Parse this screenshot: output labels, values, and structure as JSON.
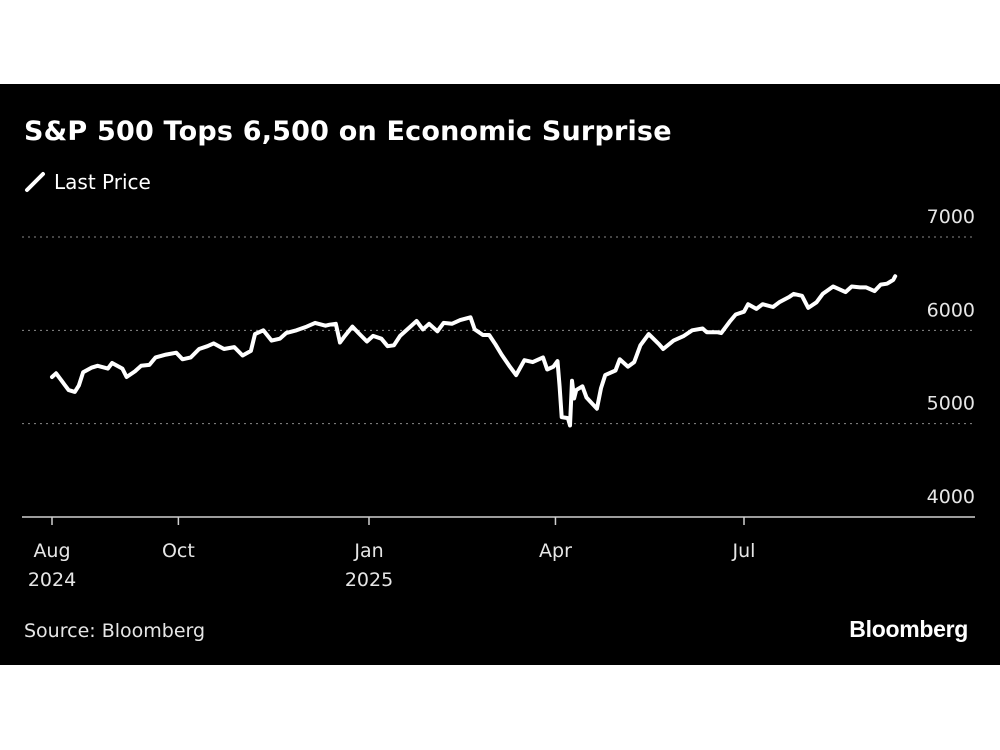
{
  "chart_data": {
    "type": "line",
    "title": "S&P 500 Tops 6,500 on Economic Surprise",
    "legend": {
      "placement": "top-left",
      "entries": [
        "Last Price"
      ]
    },
    "source": "Source: Bloomberg",
    "brand": "Bloomberg",
    "ylim": [
      4000,
      7000
    ],
    "yticks": [
      {
        "value": 7000,
        "label": "7000"
      },
      {
        "value": 6000,
        "label": "6000"
      },
      {
        "value": 5000,
        "label": "5000"
      },
      {
        "value": 4000,
        "label": "4000"
      }
    ],
    "grid": "horizontal-dotted",
    "x_range": [
      "2024-07-31",
      "2025-09-30"
    ],
    "xticks": [
      {
        "date": "2024-08-01",
        "line1": "Aug",
        "line2": "2024"
      },
      {
        "date": "2024-10-01",
        "line1": "Oct",
        "line2": ""
      },
      {
        "date": "2025-01-01",
        "line1": "Jan",
        "line2": "2025"
      },
      {
        "date": "2025-04-01",
        "line1": "Apr",
        "line2": ""
      },
      {
        "date": "2025-07-01",
        "line1": "Jul",
        "line2": ""
      }
    ],
    "series": [
      {
        "name": "Last Price",
        "color": "#ffffff",
        "points": [
          [
            "2024-08-01",
            5500
          ],
          [
            "2024-08-03",
            5540
          ],
          [
            "2024-08-05",
            5480
          ],
          [
            "2024-08-07",
            5420
          ],
          [
            "2024-08-09",
            5360
          ],
          [
            "2024-08-12",
            5340
          ],
          [
            "2024-08-14",
            5410
          ],
          [
            "2024-08-16",
            5550
          ],
          [
            "2024-08-20",
            5600
          ],
          [
            "2024-08-23",
            5620
          ],
          [
            "2024-08-28",
            5590
          ],
          [
            "2024-08-30",
            5650
          ],
          [
            "2024-09-04",
            5590
          ],
          [
            "2024-09-06",
            5500
          ],
          [
            "2024-09-10",
            5560
          ],
          [
            "2024-09-13",
            5620
          ],
          [
            "2024-09-17",
            5630
          ],
          [
            "2024-09-20",
            5710
          ],
          [
            "2024-09-25",
            5740
          ],
          [
            "2024-09-30",
            5760
          ],
          [
            "2024-10-03",
            5690
          ],
          [
            "2024-10-07",
            5710
          ],
          [
            "2024-10-11",
            5800
          ],
          [
            "2024-10-15",
            5830
          ],
          [
            "2024-10-18",
            5860
          ],
          [
            "2024-10-23",
            5800
          ],
          [
            "2024-10-28",
            5820
          ],
          [
            "2024-11-01",
            5730
          ],
          [
            "2024-11-05",
            5780
          ],
          [
            "2024-11-07",
            5960
          ],
          [
            "2024-11-11",
            6000
          ],
          [
            "2024-11-15",
            5890
          ],
          [
            "2024-11-19",
            5910
          ],
          [
            "2024-11-22",
            5970
          ],
          [
            "2024-11-27",
            6000
          ],
          [
            "2024-12-02",
            6040
          ],
          [
            "2024-12-06",
            6080
          ],
          [
            "2024-12-11",
            6050
          ],
          [
            "2024-12-13",
            6060
          ],
          [
            "2024-12-16",
            6070
          ],
          [
            "2024-12-18",
            5870
          ],
          [
            "2024-12-20",
            5930
          ],
          [
            "2024-12-24",
            6040
          ],
          [
            "2024-12-27",
            5970
          ],
          [
            "2024-12-31",
            5880
          ],
          [
            "2025-01-03",
            5940
          ],
          [
            "2025-01-07",
            5910
          ],
          [
            "2025-01-10",
            5830
          ],
          [
            "2025-01-13",
            5840
          ],
          [
            "2025-01-16",
            5940
          ],
          [
            "2025-01-21",
            6040
          ],
          [
            "2025-01-24",
            6100
          ],
          [
            "2025-01-27",
            6010
          ],
          [
            "2025-01-30",
            6070
          ],
          [
            "2025-02-03",
            5990
          ],
          [
            "2025-02-06",
            6080
          ],
          [
            "2025-02-10",
            6070
          ],
          [
            "2025-02-14",
            6110
          ],
          [
            "2025-02-19",
            6140
          ],
          [
            "2025-02-21",
            6010
          ],
          [
            "2025-02-25",
            5950
          ],
          [
            "2025-02-28",
            5950
          ],
          [
            "2025-03-03",
            5850
          ],
          [
            "2025-03-06",
            5740
          ],
          [
            "2025-03-10",
            5610
          ],
          [
            "2025-03-13",
            5520
          ],
          [
            "2025-03-17",
            5680
          ],
          [
            "2025-03-21",
            5660
          ],
          [
            "2025-03-26",
            5710
          ],
          [
            "2025-03-28",
            5580
          ],
          [
            "2025-03-31",
            5610
          ],
          [
            "2025-04-02",
            5670
          ],
          [
            "2025-04-03",
            5400
          ],
          [
            "2025-04-04",
            5070
          ],
          [
            "2025-04-07",
            5060
          ],
          [
            "2025-04-08",
            4980
          ],
          [
            "2025-04-09",
            5460
          ],
          [
            "2025-04-10",
            5270
          ],
          [
            "2025-04-11",
            5360
          ],
          [
            "2025-04-14",
            5400
          ],
          [
            "2025-04-16",
            5280
          ],
          [
            "2025-04-21",
            5160
          ],
          [
            "2025-04-23",
            5380
          ],
          [
            "2025-04-25",
            5520
          ],
          [
            "2025-04-30",
            5570
          ],
          [
            "2025-05-02",
            5690
          ],
          [
            "2025-05-06",
            5610
          ],
          [
            "2025-05-09",
            5660
          ],
          [
            "2025-05-12",
            5840
          ],
          [
            "2025-05-16",
            5960
          ],
          [
            "2025-05-21",
            5850
          ],
          [
            "2025-05-23",
            5800
          ],
          [
            "2025-05-28",
            5890
          ],
          [
            "2025-06-02",
            5940
          ],
          [
            "2025-06-06",
            6000
          ],
          [
            "2025-06-11",
            6020
          ],
          [
            "2025-06-13",
            5980
          ],
          [
            "2025-06-18",
            5980
          ],
          [
            "2025-06-20",
            5970
          ],
          [
            "2025-06-24",
            6090
          ],
          [
            "2025-06-27",
            6170
          ],
          [
            "2025-07-01",
            6200
          ],
          [
            "2025-07-03",
            6280
          ],
          [
            "2025-07-07",
            6230
          ],
          [
            "2025-07-10",
            6280
          ],
          [
            "2025-07-15",
            6250
          ],
          [
            "2025-07-18",
            6300
          ],
          [
            "2025-07-23",
            6360
          ],
          [
            "2025-07-25",
            6390
          ],
          [
            "2025-07-29",
            6370
          ],
          [
            "2025-08-01",
            6240
          ],
          [
            "2025-08-05",
            6300
          ],
          [
            "2025-08-08",
            6390
          ],
          [
            "2025-08-13",
            6470
          ],
          [
            "2025-08-15",
            6450
          ],
          [
            "2025-08-19",
            6410
          ],
          [
            "2025-08-22",
            6470
          ],
          [
            "2025-08-26",
            6460
          ],
          [
            "2025-08-29",
            6460
          ],
          [
            "2025-09-02",
            6420
          ],
          [
            "2025-09-05",
            6490
          ],
          [
            "2025-09-08",
            6500
          ],
          [
            "2025-09-11",
            6540
          ],
          [
            "2025-09-12",
            6580
          ]
        ]
      }
    ]
  }
}
